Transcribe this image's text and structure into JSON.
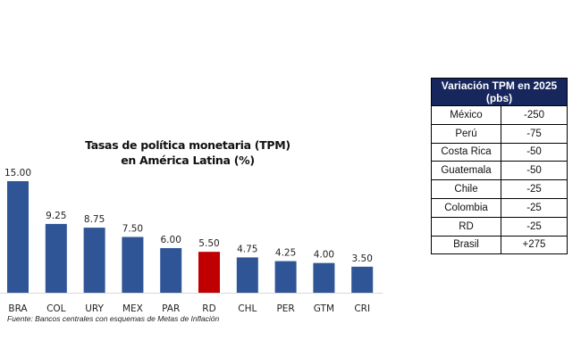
{
  "chart_data": {
    "type": "bar",
    "title": "Tasas de política monetaria (TPM) en América Latina (%)",
    "title_lines": [
      "Tasas de política monetaria (TPM)",
      "en América Latina (%)"
    ],
    "categories": [
      "BRA",
      "COL",
      "URY",
      "MEX",
      "PAR",
      "RD",
      "CHL",
      "PER",
      "GTM",
      "CRI"
    ],
    "values": [
      15.0,
      9.25,
      8.75,
      7.5,
      6.0,
      5.5,
      4.75,
      4.25,
      4.0,
      3.5
    ],
    "data_labels": [
      "15.00",
      "9.25",
      "8.75",
      "7.50",
      "6.00",
      "5.50",
      "4.75",
      "4.25",
      "4.00",
      "3.50"
    ],
    "colors": {
      "default": "#2f5597",
      "highlight": "#c00000"
    },
    "highlight_category": "RD",
    "ylim": [
      0,
      15
    ],
    "grid": false,
    "source": "Fuente: Bancos centrales con esquemas de Metas de Inflación"
  },
  "table": {
    "header": "Variación TPM en 2025 (pbs)",
    "rows": [
      {
        "country": "México",
        "value": "-250"
      },
      {
        "country": "Perú",
        "value": "-75"
      },
      {
        "country": "Costa Rica",
        "value": "-50"
      },
      {
        "country": "Guatemala",
        "value": "-50"
      },
      {
        "country": "Chile",
        "value": "-25"
      },
      {
        "country": "Colombia",
        "value": "-25"
      },
      {
        "country": "RD",
        "value": "-25"
      },
      {
        "country": "Brasil",
        "value": "+275"
      }
    ]
  }
}
